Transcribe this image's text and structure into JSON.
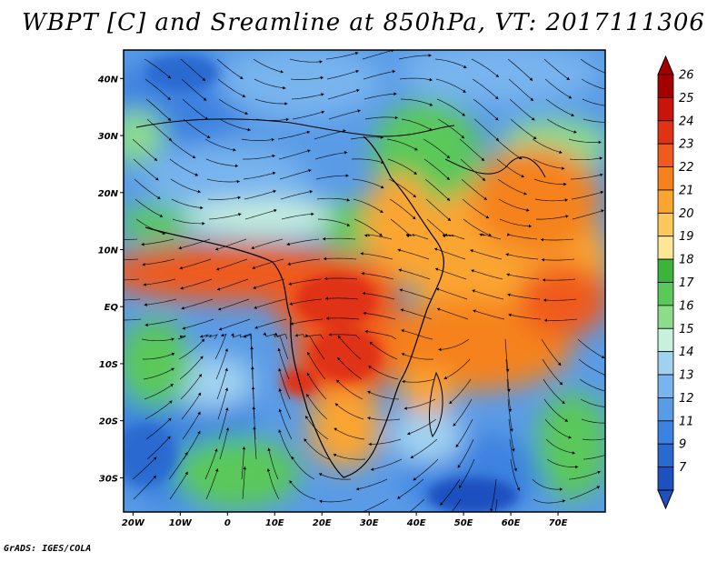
{
  "title": "WBPT [C] and Sreamline at 850hPa, VT: 2017111306",
  "credit": "GrADS: IGES/COLA",
  "map": {
    "variable": "wet-bulb potential temperature",
    "level": "850hPa",
    "valid_time": "2017111306",
    "lon_range": [
      -22,
      80
    ],
    "lat_range": [
      -36,
      45
    ],
    "x_ticks": [
      {
        "lon": -20,
        "label": "20W"
      },
      {
        "lon": -10,
        "label": "10W"
      },
      {
        "lon": 0,
        "label": "0"
      },
      {
        "lon": 10,
        "label": "10E"
      },
      {
        "lon": 20,
        "label": "20E"
      },
      {
        "lon": 30,
        "label": "30E"
      },
      {
        "lon": 40,
        "label": "40E"
      },
      {
        "lon": 50,
        "label": "50E"
      },
      {
        "lon": 60,
        "label": "60E"
      },
      {
        "lon": 70,
        "label": "70E"
      }
    ],
    "y_ticks": [
      {
        "lat": 40,
        "label": "40N"
      },
      {
        "lat": 30,
        "label": "30N"
      },
      {
        "lat": 20,
        "label": "20N"
      },
      {
        "lat": 10,
        "label": "10N"
      },
      {
        "lat": 0,
        "label": "EQ"
      },
      {
        "lat": -10,
        "label": "10S"
      },
      {
        "lat": -20,
        "label": "20S"
      },
      {
        "lat": -30,
        "label": "30S"
      }
    ]
  },
  "colorbar": {
    "levels": [
      {
        "label": "26",
        "color": "#a50000"
      },
      {
        "label": "25",
        "color": "#c8140a"
      },
      {
        "label": "24",
        "color": "#e03214"
      },
      {
        "label": "23",
        "color": "#f05a1e"
      },
      {
        "label": "22",
        "color": "#f5821e"
      },
      {
        "label": "21",
        "color": "#faa532"
      },
      {
        "label": "20",
        "color": "#fcc85a"
      },
      {
        "label": "19",
        "color": "#fde696"
      },
      {
        "label": "18",
        "color": "#3cb43c"
      },
      {
        "label": "17",
        "color": "#5ac85a"
      },
      {
        "label": "16",
        "color": "#8cdc8c"
      },
      {
        "label": "15",
        "color": "#c8f0dc"
      },
      {
        "label": "14",
        "color": "#a0d2f0"
      },
      {
        "label": "13",
        "color": "#78b4ee"
      },
      {
        "label": "12",
        "color": "#5a9be6"
      },
      {
        "label": "11",
        "color": "#3c82e0"
      },
      {
        "label": "9",
        "color": "#2a6ad0"
      },
      {
        "label": "7",
        "color": "#1e50c0"
      }
    ],
    "top_color": "#a50000",
    "bottom_color": "#1e50c0"
  }
}
